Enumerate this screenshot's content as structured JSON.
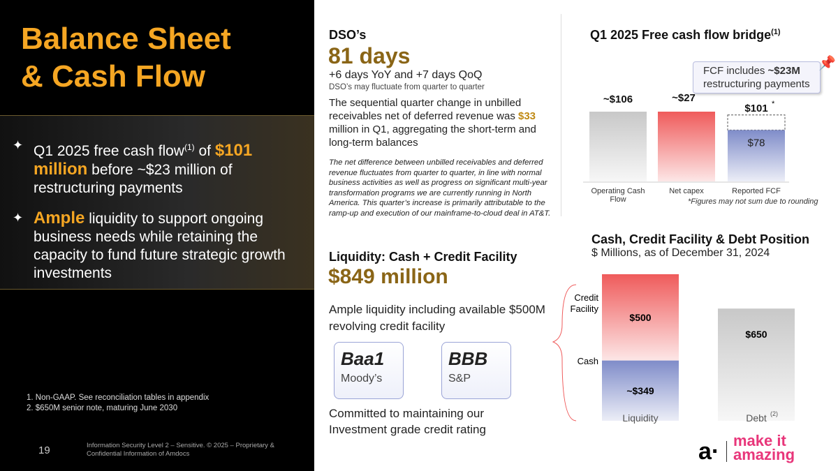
{
  "left": {
    "title_line1": "Balance Sheet",
    "title_line2": "& Cash Flow",
    "bullet1_pre": "Q1 2025 free cash flow",
    "bullet1_sup": "(1)",
    "bullet1_of": " of ",
    "bullet1_val": "$101",
    "bullet1_million": "million",
    "bullet1_post": " before ~$23 million of restructuring payments",
    "bullet2_em": "Ample",
    "bullet2_post": " liquidity to support ongoing business needs while retaining the capacity to fund future strategic growth investments",
    "footnotes": [
      "1.  Non-GAAP. See reconciliation tables in appendix",
      "2.  $650M senior note, maturing June 2030"
    ],
    "page": "19",
    "legal": "Information Security Level 2 – Sensitive. © 2025 – Proprietary & Confidential Information of Amdocs"
  },
  "dso": {
    "heading": "DSO’s",
    "value": "81 days",
    "change": "+6 days YoY and +7 days QoQ",
    "note": "DSO’s may fluctuate from quarter to quarter",
    "p1_a": "The sequential quarter change in unbilled receivables net of deferred revenue was ",
    "p1_val": "$33",
    "p1_b": " million in Q1, aggregating the short-term and long-term balances",
    "p2": "The net difference between unbilled receivables and deferred revenue fluctuates from quarter to quarter, in line with normal business activities as well as progress on significant multi-year transformation programs we are currently running in North America. This quarter’s increase is primarily attributable to the ramp-up and execution of our mainframe-to-cloud deal in AT&T."
  },
  "liquidity": {
    "heading": "Liquidity: Cash + Credit Facility",
    "value": "$849 million",
    "desc": "Ample liquidity including available $500M revolving credit facility",
    "ratings": [
      {
        "grade": "Baa1",
        "agency": "Moody’s"
      },
      {
        "grade": "BBB",
        "agency": "S&P"
      }
    ],
    "commit": "Committed to maintaining our Investment grade credit rating"
  },
  "callout": {
    "pre": "FCF includes ",
    "bold": "~$23M",
    "post": " restructuring payments"
  },
  "logo": {
    "line1": "make it",
    "line2": "amazing"
  },
  "chart_data": [
    {
      "type": "bar",
      "title": "Q1 2025 Free cash flow bridge",
      "title_sup": "(1)",
      "categories": [
        "Operating Cash Flow",
        "Net capex",
        "Reported FCF"
      ],
      "values": [
        106,
        27,
        101
      ],
      "labels": [
        "~$106",
        "~$27",
        "$101"
      ],
      "label_sup": "*",
      "inner_label": "$78",
      "inner_value": 78,
      "footnote": "*Figures may not sum due to rounding",
      "colors": [
        "#c8c8c8",
        "#ef5b5b",
        "#7f8cc9"
      ]
    },
    {
      "type": "bar",
      "title": "Cash, Credit Facility & Debt Position",
      "subtitle": "$ Millions, as of December 31, 2024",
      "categories": [
        "Liquidity",
        "Debt"
      ],
      "category_sup": "(2)",
      "series": [
        {
          "name": "Cash",
          "values": [
            349,
            0
          ],
          "label": "~$349"
        },
        {
          "name": "Credit Facility",
          "values": [
            500,
            0
          ],
          "label": "$500"
        },
        {
          "name": "Debt",
          "values": [
            0,
            650
          ],
          "label": "$650"
        }
      ],
      "legend": [
        "Credit Facility",
        "Cash"
      ]
    }
  ]
}
